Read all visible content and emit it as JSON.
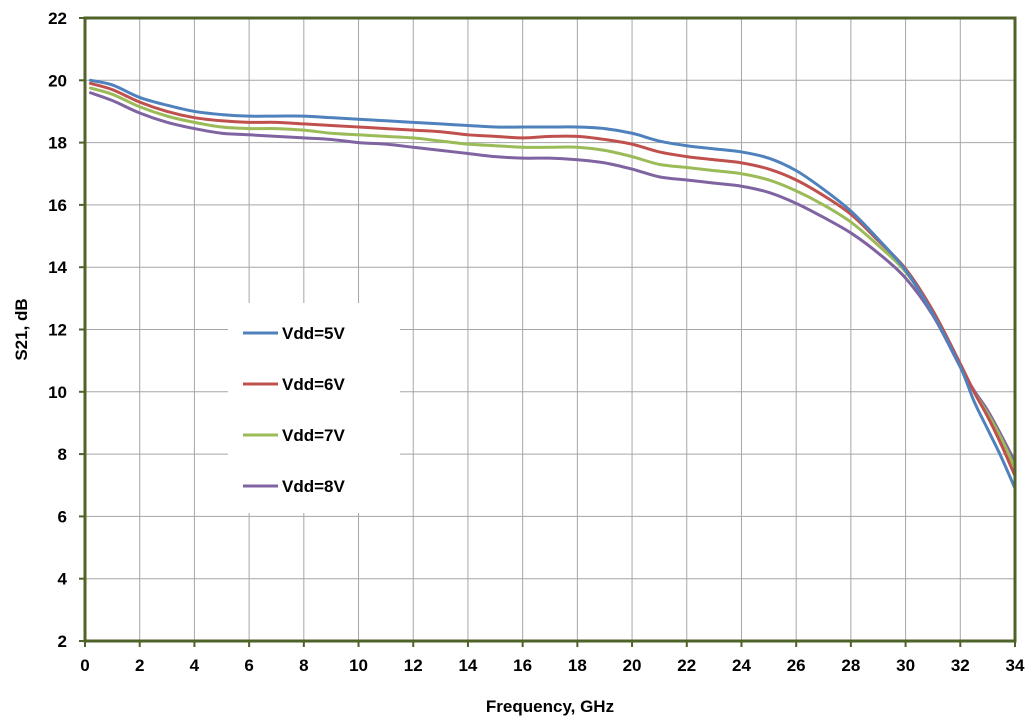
{
  "chart_data": {
    "type": "line",
    "title": "",
    "xlabel": "Frequency, GHz",
    "ylabel": "S21, dB",
    "xlim": [
      0,
      34
    ],
    "ylim": [
      2,
      22
    ],
    "x_ticks": [
      0,
      2,
      4,
      6,
      8,
      10,
      12,
      14,
      16,
      18,
      20,
      22,
      24,
      26,
      28,
      30,
      32,
      34
    ],
    "y_ticks": [
      2,
      4,
      6,
      8,
      10,
      12,
      14,
      16,
      18,
      20,
      22
    ],
    "grid": true,
    "legend_position": "center-left",
    "series": [
      {
        "name": "Vdd=5V",
        "color": "#4f81bd",
        "points": [
          [
            0.2,
            20.0
          ],
          [
            1,
            19.85
          ],
          [
            2,
            19.45
          ],
          [
            3,
            19.2
          ],
          [
            4,
            19.0
          ],
          [
            5,
            18.9
          ],
          [
            6,
            18.85
          ],
          [
            7,
            18.85
          ],
          [
            8,
            18.85
          ],
          [
            9,
            18.8
          ],
          [
            10,
            18.75
          ],
          [
            11,
            18.7
          ],
          [
            12,
            18.65
          ],
          [
            13,
            18.6
          ],
          [
            14,
            18.55
          ],
          [
            15,
            18.5
          ],
          [
            16,
            18.5
          ],
          [
            17,
            18.5
          ],
          [
            18,
            18.5
          ],
          [
            19,
            18.45
          ],
          [
            20,
            18.3
          ],
          [
            21,
            18.05
          ],
          [
            22,
            17.9
          ],
          [
            23,
            17.8
          ],
          [
            24,
            17.7
          ],
          [
            25,
            17.5
          ],
          [
            26,
            17.1
          ],
          [
            27,
            16.5
          ],
          [
            28,
            15.8
          ],
          [
            29,
            14.9
          ],
          [
            30,
            13.9
          ],
          [
            31,
            12.5
          ],
          [
            32,
            10.8
          ],
          [
            32.5,
            9.7
          ],
          [
            33,
            8.8
          ],
          [
            33.5,
            7.9
          ],
          [
            34,
            6.9
          ]
        ]
      },
      {
        "name": "Vdd=6V",
        "color": "#c0504d",
        "points": [
          [
            0.2,
            19.9
          ],
          [
            1,
            19.7
          ],
          [
            2,
            19.3
          ],
          [
            3,
            19.0
          ],
          [
            4,
            18.8
          ],
          [
            5,
            18.7
          ],
          [
            6,
            18.65
          ],
          [
            7,
            18.65
          ],
          [
            8,
            18.6
          ],
          [
            9,
            18.55
          ],
          [
            10,
            18.5
          ],
          [
            11,
            18.45
          ],
          [
            12,
            18.4
          ],
          [
            13,
            18.35
          ],
          [
            14,
            18.25
          ],
          [
            15,
            18.2
          ],
          [
            16,
            18.15
          ],
          [
            17,
            18.2
          ],
          [
            18,
            18.2
          ],
          [
            19,
            18.1
          ],
          [
            20,
            17.95
          ],
          [
            21,
            17.7
          ],
          [
            22,
            17.55
          ],
          [
            23,
            17.45
          ],
          [
            24,
            17.35
          ],
          [
            25,
            17.15
          ],
          [
            26,
            16.8
          ],
          [
            27,
            16.3
          ],
          [
            28,
            15.7
          ],
          [
            29,
            14.85
          ],
          [
            30,
            13.95
          ],
          [
            31,
            12.6
          ],
          [
            32,
            10.9
          ],
          [
            32.5,
            10.0
          ],
          [
            33,
            9.2
          ],
          [
            33.5,
            8.3
          ],
          [
            34,
            7.3
          ]
        ]
      },
      {
        "name": "Vdd=7V",
        "color": "#9bbb59",
        "points": [
          [
            0.2,
            19.75
          ],
          [
            1,
            19.55
          ],
          [
            2,
            19.15
          ],
          [
            3,
            18.85
          ],
          [
            4,
            18.65
          ],
          [
            5,
            18.5
          ],
          [
            6,
            18.45
          ],
          [
            7,
            18.45
          ],
          [
            8,
            18.4
          ],
          [
            9,
            18.3
          ],
          [
            10,
            18.25
          ],
          [
            11,
            18.2
          ],
          [
            12,
            18.15
          ],
          [
            13,
            18.05
          ],
          [
            14,
            17.95
          ],
          [
            15,
            17.9
          ],
          [
            16,
            17.85
          ],
          [
            17,
            17.85
          ],
          [
            18,
            17.85
          ],
          [
            19,
            17.75
          ],
          [
            20,
            17.55
          ],
          [
            21,
            17.3
          ],
          [
            22,
            17.2
          ],
          [
            23,
            17.1
          ],
          [
            24,
            17.0
          ],
          [
            25,
            16.8
          ],
          [
            26,
            16.45
          ],
          [
            27,
            16.0
          ],
          [
            28,
            15.45
          ],
          [
            29,
            14.7
          ],
          [
            30,
            13.85
          ],
          [
            31,
            12.55
          ],
          [
            32,
            10.85
          ],
          [
            32.5,
            10.0
          ],
          [
            33,
            9.3
          ],
          [
            33.5,
            8.5
          ],
          [
            34,
            7.55
          ]
        ]
      },
      {
        "name": "Vdd=8V",
        "color": "#8064a2",
        "points": [
          [
            0.2,
            19.6
          ],
          [
            1,
            19.35
          ],
          [
            2,
            18.95
          ],
          [
            3,
            18.65
          ],
          [
            4,
            18.45
          ],
          [
            5,
            18.3
          ],
          [
            6,
            18.25
          ],
          [
            7,
            18.2
          ],
          [
            8,
            18.15
          ],
          [
            9,
            18.1
          ],
          [
            10,
            18.0
          ],
          [
            11,
            17.95
          ],
          [
            12,
            17.85
          ],
          [
            13,
            17.75
          ],
          [
            14,
            17.65
          ],
          [
            15,
            17.55
          ],
          [
            16,
            17.5
          ],
          [
            17,
            17.5
          ],
          [
            18,
            17.45
          ],
          [
            19,
            17.35
          ],
          [
            20,
            17.15
          ],
          [
            21,
            16.9
          ],
          [
            22,
            16.8
          ],
          [
            23,
            16.7
          ],
          [
            24,
            16.6
          ],
          [
            25,
            16.4
          ],
          [
            26,
            16.05
          ],
          [
            27,
            15.6
          ],
          [
            28,
            15.1
          ],
          [
            29,
            14.45
          ],
          [
            30,
            13.65
          ],
          [
            31,
            12.45
          ],
          [
            32,
            10.8
          ],
          [
            32.5,
            10.05
          ],
          [
            33,
            9.4
          ],
          [
            33.5,
            8.6
          ],
          [
            34,
            7.75
          ]
        ]
      }
    ]
  }
}
